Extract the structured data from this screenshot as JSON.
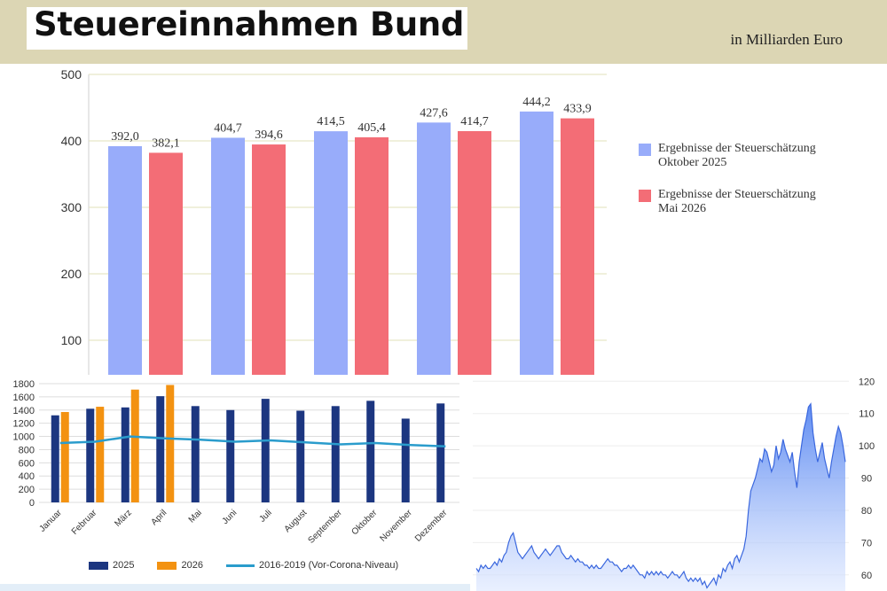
{
  "header": {
    "title": "Steuereinnahmen Bund",
    "unit": "in Milliarden Euro"
  },
  "colors": {
    "header_bg": "#dcd6b4",
    "oktober": "#98acfa",
    "mai": "#f36d76",
    "y2025": "#1c3680",
    "y2026": "#f39211",
    "corona": "#2a9ccc",
    "price_line": "#3a67de"
  },
  "chart_data": [
    {
      "type": "bar",
      "title": "Steuereinnahmen Bund",
      "ylabel": "in Milliarden Euro",
      "ylim": [
        0,
        500
      ],
      "yticks": [
        100,
        200,
        300,
        400,
        500
      ],
      "grid": true,
      "legend_position": "right",
      "series": [
        {
          "name": "Ergebnisse der Steuerschätzung",
          "name_sub": "Oktober 2025",
          "values": [
            392.0,
            404.7,
            414.5,
            427.6,
            444.2
          ],
          "labels": [
            "392,0",
            "404,7",
            "414,5",
            "427,6",
            "444,2"
          ]
        },
        {
          "name": "Ergebnisse der Steuerschätzung",
          "name_sub": "Mai 2026",
          "values": [
            382.1,
            394.6,
            405.4,
            414.7,
            433.9
          ],
          "labels": [
            "382,1",
            "394,6",
            "405,4",
            "414,7",
            "433,9"
          ]
        }
      ]
    },
    {
      "type": "bar",
      "ylim": [
        0,
        1800
      ],
      "yticks": [
        0,
        200,
        400,
        600,
        800,
        1000,
        1200,
        1400,
        1600,
        1800
      ],
      "categories": [
        "Januar",
        "Februar",
        "März",
        "April",
        "Mai",
        "Juni",
        "Juli",
        "August",
        "September",
        "Oktober",
        "November",
        "Dezember"
      ],
      "grid": true,
      "legend_position": "bottom",
      "series": [
        {
          "name": "2025",
          "type": "bar",
          "values": [
            1320,
            1420,
            1440,
            1610,
            1460,
            1400,
            1570,
            1390,
            1460,
            1540,
            1270,
            1500
          ]
        },
        {
          "name": "2026",
          "type": "bar",
          "values": [
            1370,
            1450,
            1710,
            1780,
            null,
            null,
            null,
            null,
            null,
            null,
            null,
            null
          ]
        },
        {
          "name": "2016-2019 (Vor-Corona-Niveau)",
          "type": "line",
          "values": [
            900,
            920,
            1000,
            970,
            950,
            920,
            940,
            910,
            880,
            900,
            870,
            850
          ]
        }
      ]
    },
    {
      "type": "area",
      "ylim": [
        55,
        122
      ],
      "yticks": [
        60,
        70,
        80,
        90,
        100,
        110,
        120
      ],
      "y_axis_position": "right",
      "series": [
        {
          "values": [
            62,
            61,
            63,
            62,
            63,
            62,
            62,
            63,
            64,
            63,
            65,
            64,
            66,
            67,
            70,
            72,
            73,
            70,
            67,
            66,
            65,
            66,
            67,
            68,
            69,
            67,
            66,
            65,
            66,
            67,
            68,
            67,
            66,
            67,
            68,
            69,
            69,
            67,
            66,
            65,
            65,
            66,
            65,
            64,
            65,
            64,
            64,
            63,
            63,
            62,
            63,
            62,
            63,
            62,
            62,
            63,
            64,
            65,
            64,
            64,
            63,
            63,
            62,
            61,
            62,
            62,
            63,
            62,
            63,
            62,
            61,
            60,
            60,
            59,
            61,
            60,
            61,
            60,
            61,
            60,
            61,
            60,
            60,
            59,
            60,
            61,
            60,
            60,
            59,
            60,
            61,
            59,
            58,
            59,
            58,
            59,
            58,
            59,
            57,
            58,
            56,
            57,
            58,
            59,
            57,
            60,
            59,
            62,
            61,
            63,
            64,
            62,
            65,
            66,
            64,
            66,
            68,
            72,
            80,
            86,
            88,
            90,
            93,
            96,
            95,
            99,
            98,
            95,
            92,
            94,
            100,
            96,
            98,
            102,
            99,
            97,
            95,
            98,
            92,
            87,
            95,
            100,
            105,
            108,
            112,
            113,
            104,
            99,
            95,
            98,
            101,
            96,
            93,
            90,
            95,
            99,
            103,
            106,
            104,
            100,
            95
          ]
        }
      ]
    }
  ]
}
